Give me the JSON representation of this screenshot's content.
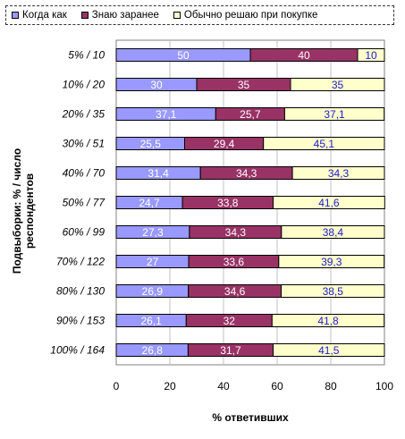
{
  "chart_data": {
    "type": "bar",
    "orientation": "horizontal",
    "stacked": true,
    "categories": [
      "5% / 10",
      "10% / 20",
      "20% / 35",
      "30% / 51",
      "40% / 70",
      "50% / 77",
      "60% / 99",
      "70% / 122",
      "80% / 130",
      "90% / 153",
      "100% / 164"
    ],
    "series": [
      {
        "name": "Когда как",
        "color": "#9999ff",
        "values": [
          50,
          30,
          37.1,
          25.5,
          31.4,
          24.7,
          27.3,
          27,
          26.9,
          26.1,
          26.8
        ],
        "labels": [
          "50",
          "30",
          "37,1",
          "25,5",
          "31,4",
          "24,7",
          "27,3",
          "27",
          "26,9",
          "26,1",
          "26,8"
        ]
      },
      {
        "name": "Знаю заранее",
        "color": "#993366",
        "values": [
          40,
          35,
          25.7,
          29.4,
          34.3,
          33.8,
          34.3,
          33.6,
          34.6,
          32,
          31.7
        ],
        "labels": [
          "40",
          "35",
          "25,7",
          "29,4",
          "34,3",
          "33,8",
          "34,3",
          "33,6",
          "34,6",
          "32",
          "31,7"
        ]
      },
      {
        "name": "Обычно решаю при покупке",
        "color": "#ffffcc",
        "values": [
          10,
          35,
          37.1,
          45.1,
          34.3,
          41.6,
          38.4,
          39.3,
          38.5,
          41.8,
          41.5
        ],
        "labels": [
          "10",
          "35",
          "37,1",
          "45,1",
          "34,3",
          "41,6",
          "38,4",
          "39,3",
          "38,5",
          "41,8",
          "41,5"
        ]
      }
    ],
    "xlabel": "%  ответивших",
    "ylabel": "Подвыборки: % / число респондентов",
    "xlim": [
      0,
      100
    ],
    "xticks": [
      "0",
      "20",
      "40",
      "60",
      "80",
      "100"
    ],
    "legend_position": "top",
    "grid": true
  }
}
